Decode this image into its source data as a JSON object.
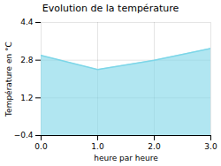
{
  "chart_data": {
    "type": "area",
    "title": "Evolution de la température",
    "xlabel": "heure par heure",
    "ylabel": "Température en °C",
    "x": [
      0,
      1,
      2,
      3
    ],
    "values": [
      3.0,
      2.4,
      2.8,
      3.3
    ],
    "color": "#7dd6e8",
    "xlim": [
      0,
      3
    ],
    "ylim": [
      -0.4,
      4.4
    ],
    "xticks": [
      0,
      1,
      2,
      3
    ],
    "yticks": [
      -0.4,
      1.2,
      2.8,
      4.4
    ],
    "grid": true
  }
}
